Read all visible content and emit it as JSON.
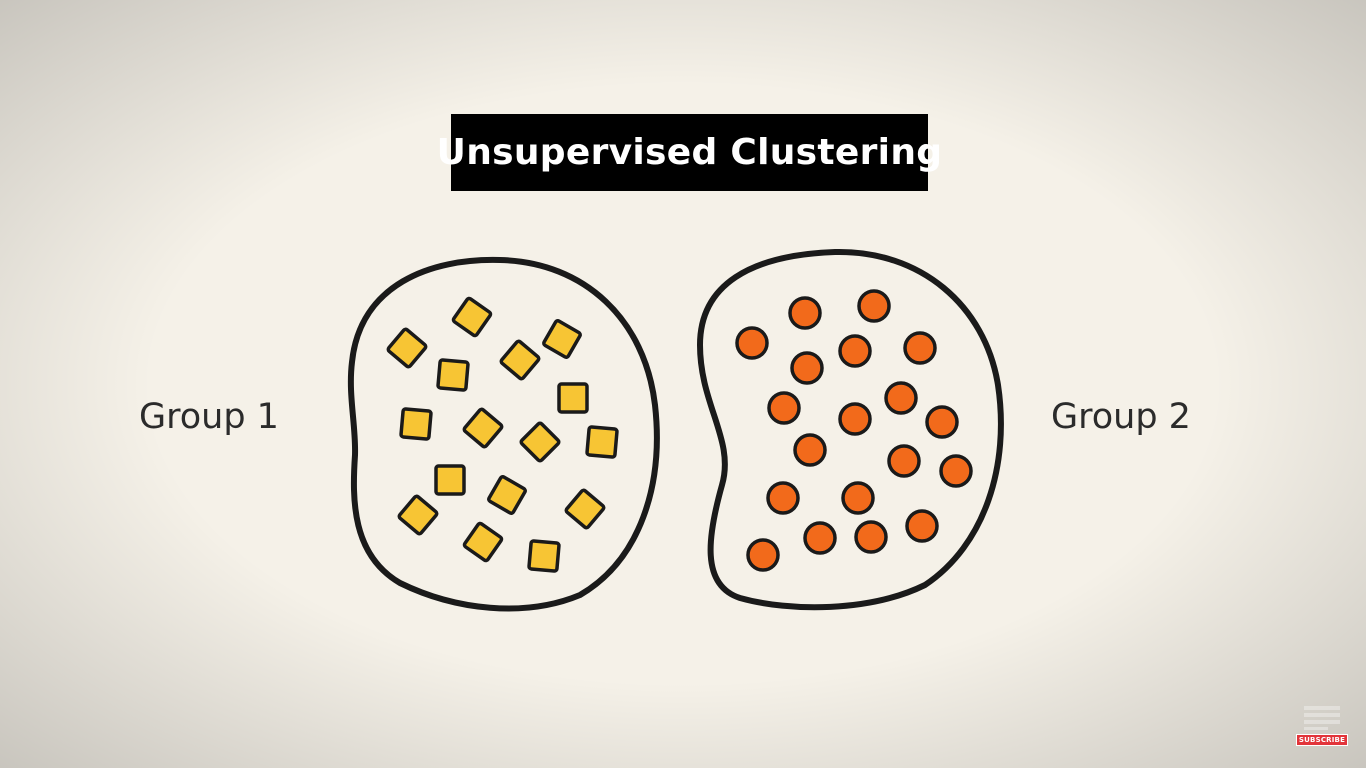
{
  "title": "Unsupervised Clustering",
  "groups": [
    {
      "label": "Group 1",
      "shape": "square",
      "fill": "#f7c534"
    },
    {
      "label": "Group 2",
      "shape": "circle",
      "fill": "#f26a1b"
    }
  ],
  "colors": {
    "background": "#f5f1e8",
    "title_background": "#000000",
    "title_text": "#ffffff",
    "outline": "#1a1a1a",
    "label_text": "#2b2b2b"
  },
  "watermark": {
    "badge": "SUBSCRIBE"
  }
}
